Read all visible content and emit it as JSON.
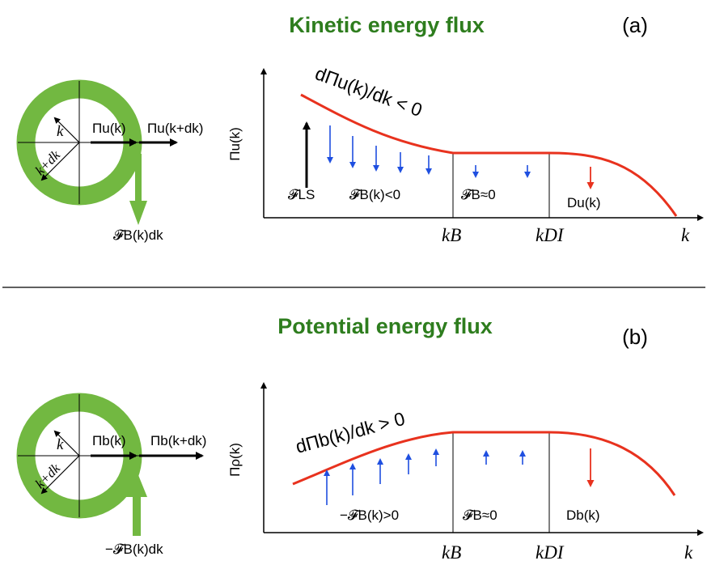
{
  "colors": {
    "title_green": "#2e7d1e",
    "ring_green": "#72b841",
    "curve_red": "#e8321e",
    "arrow_blue": "#1f4fe0",
    "decay_red": "#e8321e"
  },
  "panel_a": {
    "title": "Kinetic energy flux",
    "tag": "(a)",
    "ring": {
      "radius_label": "k",
      "outer_label": "k+dk",
      "flux_in": "Πu(k)",
      "flux_out": "Πu(k+dk)",
      "transfer": "𝓕B(k)dk"
    },
    "y_axis_label": "Πu(k)",
    "curve_label": "dΠu(k)/dk < 0",
    "region1_forcing": "𝓕LS",
    "region1_transfer": "𝓕B(k)<0",
    "region2_transfer": "𝓕B≈0",
    "region3_dissipation": "Du(k)",
    "x_ticks": [
      "kB",
      "kDI"
    ],
    "x_axis_label": "k"
  },
  "panel_b": {
    "title": "Potential energy flux",
    "tag": "(b)",
    "ring": {
      "radius_label": "k",
      "outer_label": "k+dk",
      "flux_in": "Πb(k)",
      "flux_out": "Πb(k+dk)",
      "transfer": "−𝓕B(k)dk"
    },
    "y_axis_label": "Πρ(k)",
    "curve_label": "dΠb(k)/dk > 0",
    "region1_transfer": "−𝓕B(k)>0",
    "region2_transfer": "𝓕B≈0",
    "region3_dissipation": "Db(k)",
    "x_ticks": [
      "kB",
      "kDI"
    ],
    "x_axis_label": "k"
  }
}
